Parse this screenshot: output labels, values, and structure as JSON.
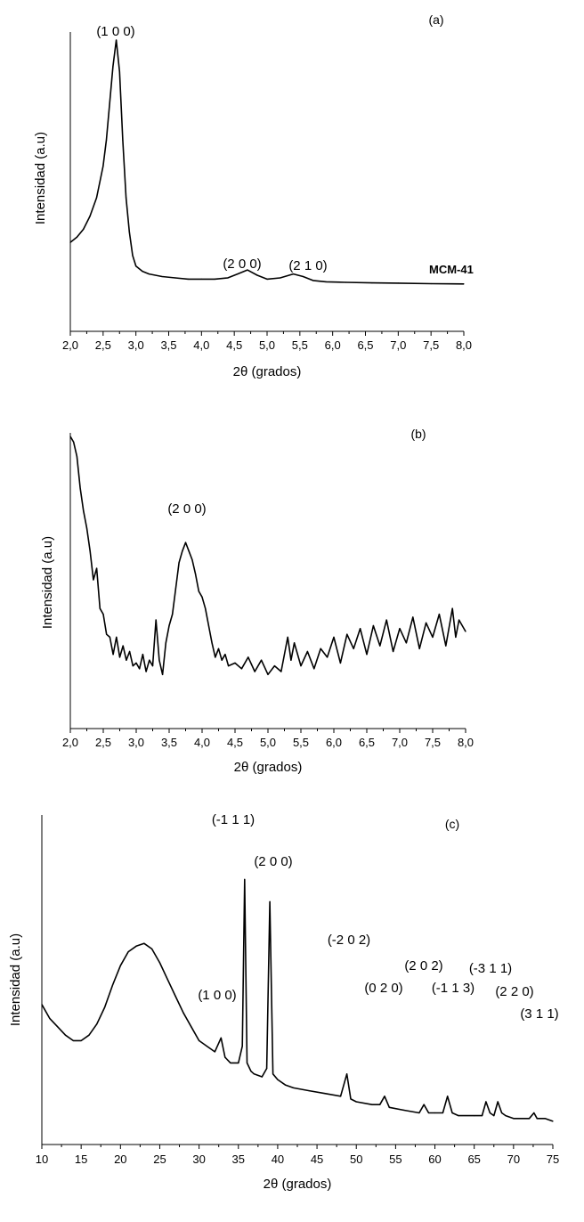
{
  "chart_data": [
    {
      "type": "line",
      "panel_label": "(a)",
      "xlabel": "2θ (grados)",
      "ylabel": "Intensidad (a.u)",
      "xlim": [
        2.0,
        8.0
      ],
      "xticks": [
        "2,0",
        "2,5",
        "3,0",
        "3,5",
        "4,0",
        "4,5",
        "5,0",
        "5,5",
        "6,0",
        "6,5",
        "7,0",
        "7,5",
        "8,0"
      ],
      "ylim": [
        0,
        100
      ],
      "grid": false,
      "series": [
        {
          "name": "MCM-41",
          "x": [
            2.0,
            2.1,
            2.2,
            2.3,
            2.4,
            2.5,
            2.55,
            2.6,
            2.65,
            2.7,
            2.75,
            2.8,
            2.85,
            2.9,
            2.95,
            3.0,
            3.1,
            3.2,
            3.4,
            3.6,
            3.8,
            4.0,
            4.2,
            4.4,
            4.55,
            4.7,
            4.85,
            5.0,
            5.2,
            5.4,
            5.55,
            5.7,
            5.9,
            6.2,
            6.6,
            7.0,
            7.5,
            8.0
          ],
          "y": [
            23,
            25,
            28,
            33,
            40,
            52,
            62,
            76,
            90,
            100,
            88,
            62,
            40,
            27,
            18,
            14,
            12,
            11,
            10,
            9.5,
            9,
            9,
            9,
            9.5,
            11,
            12.5,
            10.5,
            9,
            9.5,
            11,
            10,
            8.5,
            8,
            7.8,
            7.6,
            7.5,
            7.3,
            7.2
          ]
        }
      ],
      "annotations": [
        {
          "text": "(1 0 0)",
          "x": 2.7
        },
        {
          "text": "(2 0 0)",
          "x": 4.6
        },
        {
          "text": "(2 1 0)",
          "x": 5.5
        },
        {
          "text": "MCM-41",
          "x": 7.5,
          "bold": true
        }
      ]
    },
    {
      "type": "line",
      "panel_label": "(b)",
      "xlabel": "2θ (grados)",
      "ylabel": "Intensidad (a.u)",
      "xlim": [
        2.0,
        8.0
      ],
      "xticks": [
        "2,0",
        "2,5",
        "3,0",
        "3,5",
        "4,0",
        "4,5",
        "5,0",
        "5,5",
        "6,0",
        "6,5",
        "7,0",
        "7,5",
        "8,0"
      ],
      "ylim": [
        0,
        100
      ],
      "grid": false,
      "series": [
        {
          "name": "",
          "x": [
            2.0,
            2.05,
            2.1,
            2.15,
            2.2,
            2.25,
            2.3,
            2.35,
            2.4,
            2.45,
            2.5,
            2.55,
            2.6,
            2.65,
            2.7,
            2.75,
            2.8,
            2.85,
            2.9,
            2.95,
            3.0,
            3.05,
            3.1,
            3.15,
            3.2,
            3.25,
            3.3,
            3.35,
            3.4,
            3.45,
            3.5,
            3.55,
            3.6,
            3.65,
            3.7,
            3.75,
            3.8,
            3.85,
            3.9,
            3.95,
            4.0,
            4.05,
            4.1,
            4.15,
            4.2,
            4.25,
            4.3,
            4.35,
            4.4,
            4.5,
            4.6,
            4.7,
            4.8,
            4.9,
            5.0,
            5.1,
            5.2,
            5.3,
            5.35,
            5.4,
            5.5,
            5.6,
            5.7,
            5.8,
            5.9,
            6.0,
            6.1,
            6.2,
            6.3,
            6.4,
            6.5,
            6.6,
            6.7,
            6.8,
            6.9,
            7.0,
            7.1,
            7.2,
            7.3,
            7.4,
            7.5,
            7.6,
            7.7,
            7.8,
            7.85,
            7.9,
            8.0
          ],
          "y": [
            100,
            98,
            93,
            82,
            74,
            68,
            60,
            50,
            54,
            40,
            38,
            31,
            30,
            24,
            30,
            23,
            27,
            22,
            25,
            20,
            21,
            19,
            24,
            18,
            22,
            20,
            36,
            22,
            17,
            28,
            34,
            38,
            47,
            56,
            60,
            63,
            60,
            57,
            52,
            46,
            44,
            40,
            34,
            28,
            23,
            26,
            22,
            24,
            20,
            21,
            19,
            23,
            18,
            22,
            17,
            20,
            18,
            30,
            22,
            28,
            20,
            25,
            19,
            26,
            23,
            30,
            21,
            31,
            26,
            33,
            24,
            34,
            27,
            36,
            25,
            33,
            28,
            37,
            26,
            35,
            30,
            38,
            27,
            40,
            30,
            36,
            32
          ]
        }
      ],
      "annotations": [
        {
          "text": "(2 0 0)",
          "x": 3.8
        }
      ]
    },
    {
      "type": "line",
      "panel_label": "(c)",
      "xlabel": "2θ (grados)",
      "ylabel": "Intensidad (a.u)",
      "xlim": [
        10,
        75
      ],
      "xticks": [
        "10",
        "15",
        "20",
        "25",
        "30",
        "35",
        "40",
        "45",
        "50",
        "55",
        "60",
        "65",
        "70",
        "75"
      ],
      "ylim": [
        0,
        100
      ],
      "grid": false,
      "series": [
        {
          "name": "",
          "x": [
            10,
            11,
            12,
            13,
            14,
            15,
            16,
            17,
            18,
            19,
            20,
            21,
            22,
            23,
            24,
            25,
            26,
            27,
            28,
            29,
            30,
            31,
            32,
            32.8,
            33.3,
            34,
            35,
            35.5,
            35.8,
            36.1,
            36.6,
            37,
            38,
            38.6,
            39,
            39.4,
            40,
            41,
            42,
            44,
            46,
            48,
            48.8,
            49.3,
            50,
            52,
            53,
            53.6,
            54.2,
            56,
            58,
            58.6,
            59.2,
            60,
            61,
            61.6,
            62.2,
            63,
            65,
            66,
            66.5,
            67,
            67.5,
            68,
            68.5,
            69,
            70,
            71,
            72,
            72.6,
            73,
            74,
            75
          ],
          "y": [
            43,
            38,
            35,
            32,
            30,
            30,
            32,
            36,
            42,
            50,
            57,
            62,
            64,
            65,
            63,
            58,
            52,
            46,
            40,
            35,
            30,
            28,
            26,
            31,
            24,
            22,
            22,
            28,
            88,
            22,
            19,
            18,
            17,
            20,
            80,
            18,
            16,
            14,
            13,
            12,
            11,
            10,
            18,
            9,
            8,
            7,
            7,
            10,
            6,
            5,
            4,
            7,
            4,
            4,
            4,
            10,
            4,
            3,
            3,
            3,
            8,
            4,
            3,
            8,
            4,
            3,
            2,
            2,
            2,
            4,
            2,
            2,
            1
          ]
        }
      ],
      "annotations": [
        {
          "text": "(1 0 0)",
          "x": 32.5
        },
        {
          "text": "(-1 1 1)",
          "x": 35.2
        },
        {
          "text": "(2 0 0)",
          "x": 39.8
        },
        {
          "text": "(-2 0 2)",
          "x": 49.0
        },
        {
          "text": "(0 2 0)",
          "x": 52.8
        },
        {
          "text": "(2 0 2)",
          "x": 57.5
        },
        {
          "text": "(-1 1 3)",
          "x": 60.4
        },
        {
          "text": "(-3 1 1)",
          "x": 65.5
        },
        {
          "text": "(2 2 0)",
          "x": 67.8
        },
        {
          "text": "(3 1 1)",
          "x": 72.5
        }
      ]
    }
  ]
}
